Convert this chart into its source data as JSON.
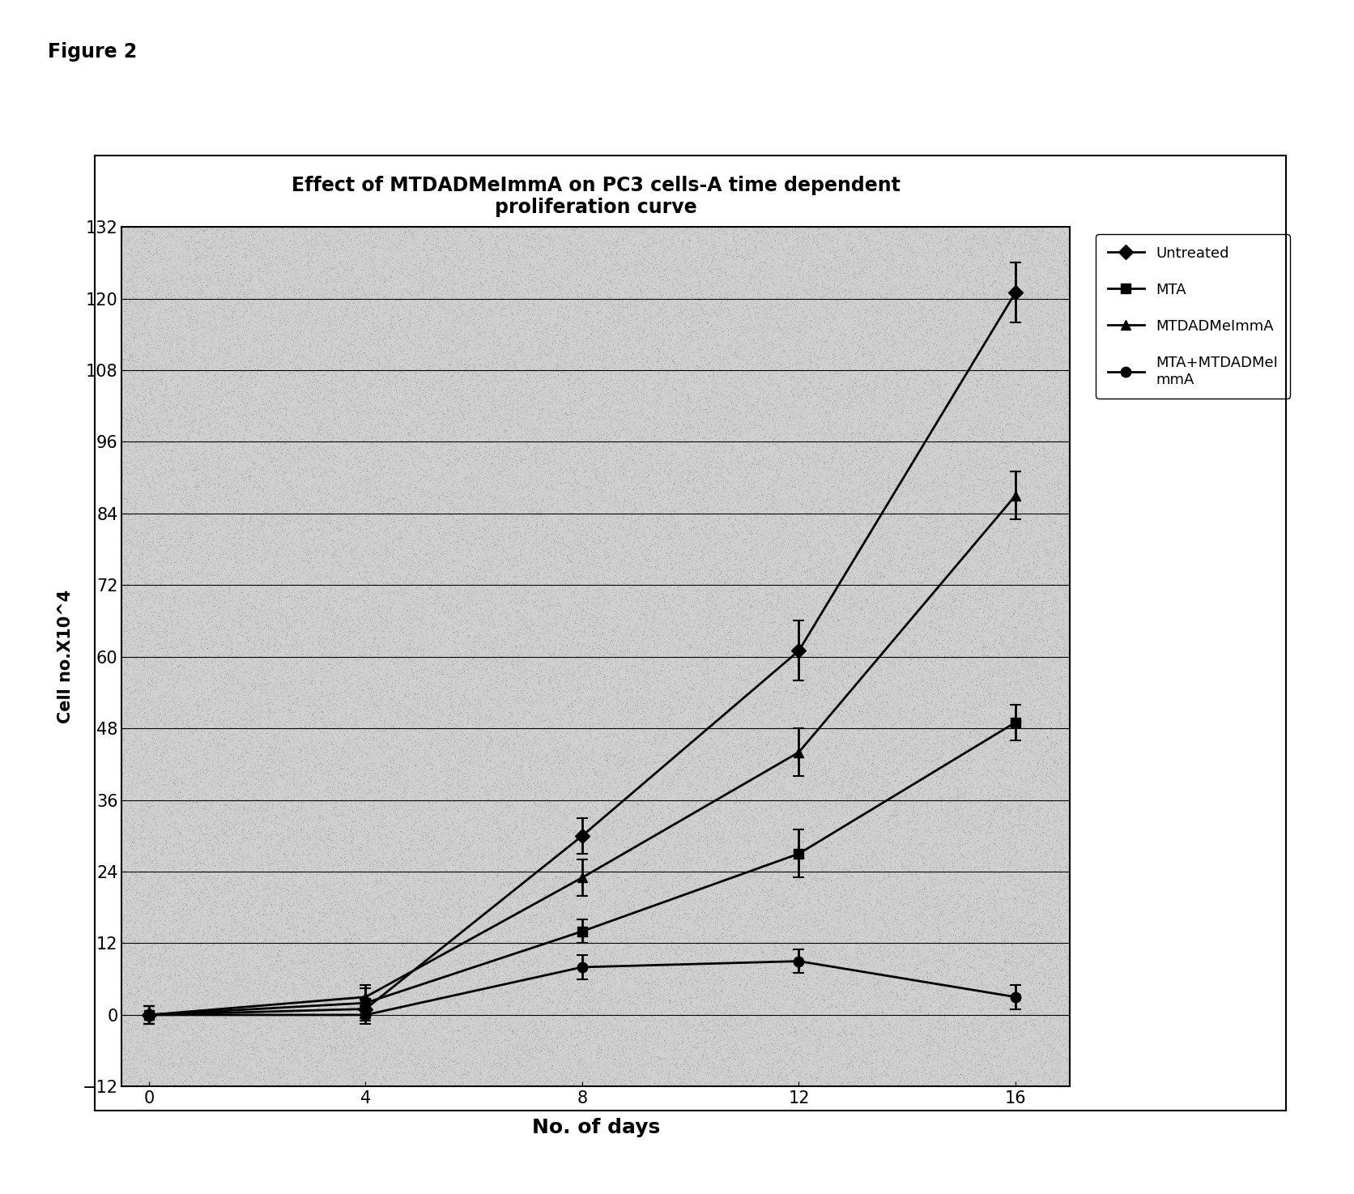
{
  "title_line1": "Effect of MTDADMeImmA on PC3 cells-A time dependent",
  "title_line2": "proliferation curve",
  "xlabel": "No. of days",
  "ylabel": "Cell no.X10^4",
  "figure_label": "Figure 2",
  "x": [
    0,
    4,
    8,
    12,
    16
  ],
  "untreated_y": [
    0,
    1,
    30,
    61,
    121
  ],
  "untreated_yerr": [
    1.5,
    1.5,
    3,
    5,
    5
  ],
  "mta_y": [
    0,
    2,
    14,
    27,
    49
  ],
  "mta_yerr": [
    1.5,
    3,
    2,
    4,
    3
  ],
  "mtdadmeimma_y": [
    0,
    3,
    23,
    44,
    87
  ],
  "mtdadmeimma_yerr": [
    1.5,
    1.5,
    3,
    4,
    4
  ],
  "mta_mtdadmeimma_y": [
    0,
    0,
    8,
    9,
    3
  ],
  "mta_mtdadmeimma_yerr": [
    1.5,
    1.5,
    2,
    2,
    2
  ],
  "yticks": [
    -12,
    0,
    12,
    24,
    36,
    48,
    60,
    72,
    84,
    96,
    108,
    120,
    132
  ],
  "xticks": [
    0,
    4,
    8,
    12,
    16
  ],
  "ylim": [
    -12,
    132
  ],
  "xlim": [
    -0.5,
    17
  ],
  "bg_color": "#d0d0d0",
  "line_color": "black",
  "legend_labels": [
    "Untreated",
    "MTA",
    "MTDADMeImmA",
    "MTA+MTDADMeI\nmmA"
  ]
}
